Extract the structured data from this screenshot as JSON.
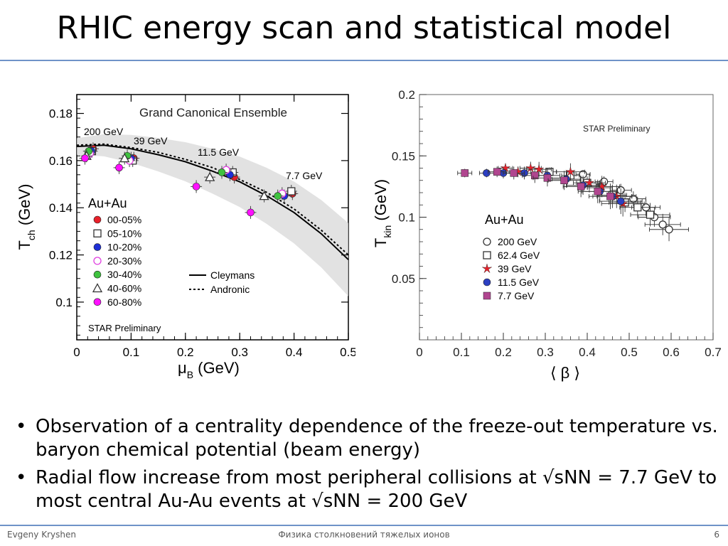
{
  "slide": {
    "title": "RHIC energy scan and statistical model",
    "bullets": [
      "Observation of a centrality dependence of the freeze-out temperature vs. baryon chemical potential (beam energy)",
      "Radial flow increase from most peripheral collisions at √sNN = 7.7 GeV to most central Au-Au events at √sNN = 200 GeV"
    ],
    "bullet_glyph": "•",
    "footer": {
      "author": "Evgeny Kryshen",
      "course": "Физика столкновений тяжелых ионов",
      "page": "6"
    }
  },
  "chart_data": [
    {
      "type": "scatter",
      "title": "Grand Canonical Ensemble",
      "xlabel": "μB (GeV)",
      "ylabel": "Tch (GeV)",
      "xlim": [
        0,
        0.5
      ],
      "ylim": [
        0.084,
        0.188
      ],
      "xticks": [
        0,
        0.1,
        0.2,
        0.3,
        0.4,
        0.5
      ],
      "xtick_labels": [
        "0",
        "0.1",
        "0.2",
        "0.3",
        "0.4",
        "0.5"
      ],
      "yticks": [
        0.1,
        0.12,
        0.14,
        0.16,
        0.18
      ],
      "ytick_labels": [
        "0.1",
        "0.12",
        "0.14",
        "0.16",
        "0.18"
      ],
      "annotations": [
        "200 GeV",
        "39 GeV",
        "11.5 GeV",
        "7.7 GeV",
        "Au+Au",
        "STAR Preliminary"
      ],
      "legend": [
        "00-05%",
        "05-10%",
        "10-20%",
        "20-30%",
        "30-40%",
        "40-60%",
        "60-80%"
      ],
      "curves": [
        {
          "name": "Cleymans",
          "style": "solid",
          "x": [
            0,
            0.05,
            0.1,
            0.15,
            0.2,
            0.25,
            0.3,
            0.35,
            0.4,
            0.45,
            0.5
          ],
          "y": [
            0.166,
            0.1665,
            0.165,
            0.1625,
            0.1595,
            0.1555,
            0.151,
            0.145,
            0.138,
            0.129,
            0.118
          ]
        },
        {
          "name": "Andronic",
          "style": "dotted",
          "x": [
            0,
            0.05,
            0.1,
            0.15,
            0.2,
            0.25,
            0.3,
            0.35,
            0.4,
            0.45,
            0.5
          ],
          "y": [
            0.1665,
            0.167,
            0.1655,
            0.1635,
            0.1605,
            0.157,
            0.152,
            0.1465,
            0.1395,
            0.1305,
            0.12
          ]
        }
      ],
      "series": [
        {
          "name": "00-05%",
          "color": "#e8202a",
          "marker": "circle",
          "x": [
            0.03,
            0.105,
            0.29,
            0.397
          ],
          "y": [
            0.165,
            0.161,
            0.153,
            0.146
          ]
        },
        {
          "name": "05-10%",
          "color": "#333333",
          "marker": "open-square",
          "x": [
            0.028,
            0.103,
            0.287,
            0.395
          ],
          "y": [
            0.164,
            0.16,
            0.155,
            0.147
          ]
        },
        {
          "name": "10-20%",
          "color": "#1f2fd6",
          "marker": "circle",
          "x": [
            0.027,
            0.1,
            0.282,
            0.382
          ],
          "y": [
            0.164,
            0.161,
            0.154,
            0.145
          ]
        },
        {
          "name": "20-30%",
          "color": "#e040e0",
          "marker": "open-circle",
          "x": [
            0.024,
            0.097,
            0.275,
            0.378
          ],
          "y": [
            0.163,
            0.16,
            0.156,
            0.146
          ]
        },
        {
          "name": "30-40%",
          "color": "#3fc23f",
          "marker": "circle",
          "x": [
            0.022,
            0.093,
            0.267,
            0.37
          ],
          "y": [
            0.164,
            0.162,
            0.155,
            0.145
          ]
        },
        {
          "name": "40-60%",
          "color": "#333333",
          "marker": "open-triangle",
          "x": [
            0.018,
            0.088,
            0.245,
            0.345
          ],
          "y": [
            0.162,
            0.161,
            0.153,
            0.145
          ]
        },
        {
          "name": "60-80%",
          "color": "#ff10ff",
          "marker": "circle",
          "x": [
            0.015,
            0.078,
            0.22,
            0.32
          ],
          "y": [
            0.161,
            0.157,
            0.149,
            0.138
          ]
        }
      ]
    },
    {
      "type": "scatter",
      "title": "STAR Preliminary",
      "xlabel": "⟨ β ⟩",
      "ylabel": "Tkin (GeV)",
      "xlim": [
        0,
        0.7
      ],
      "ylim": [
        0,
        0.2
      ],
      "xticks": [
        0,
        0.1,
        0.2,
        0.3,
        0.4,
        0.5,
        0.6,
        0.7
      ],
      "xtick_labels": [
        "0",
        "0.1",
        "0.2",
        "0.3",
        "0.4",
        "0.5",
        "0.6",
        "0.7"
      ],
      "yticks": [
        0.05,
        0.1,
        0.15,
        0.2
      ],
      "ytick_labels": [
        "0.05",
        "0.1",
        "0.15",
        "0.2"
      ],
      "annotations": [
        "Au+Au"
      ],
      "legend": [
        "200 GeV",
        "62.4 GeV",
        "39 GeV",
        "11.5 GeV",
        "7.7 GeV"
      ],
      "series": [
        {
          "name": "200 GeV",
          "color": "#333333",
          "marker": "open-circle",
          "x": [
            0.39,
            0.44,
            0.48,
            0.51,
            0.54,
            0.56,
            0.58,
            0.595
          ],
          "y": [
            0.135,
            0.129,
            0.122,
            0.115,
            0.108,
            0.1,
            0.094,
            0.09
          ]
        },
        {
          "name": "62.4 GeV",
          "color": "#333333",
          "marker": "open-square",
          "x": [
            0.31,
            0.36,
            0.4,
            0.43,
            0.46,
            0.49,
            0.52,
            0.55
          ],
          "y": [
            0.137,
            0.134,
            0.128,
            0.124,
            0.118,
            0.112,
            0.108,
            0.102
          ]
        },
        {
          "name": "39 GeV",
          "color": "#e8202a",
          "marker": "star",
          "x": [
            0.205,
            0.235,
            0.265,
            0.285,
            0.36,
            0.405,
            0.435,
            0.47,
            0.485
          ],
          "y": [
            0.14,
            0.137,
            0.14,
            0.139,
            0.137,
            0.128,
            0.125,
            0.117,
            0.111
          ]
        },
        {
          "name": "11.5 GeV",
          "color": "#2c3fc2",
          "marker": "circle",
          "x": [
            0.16,
            0.2,
            0.25,
            0.305,
            0.35,
            0.39,
            0.43,
            0.46,
            0.48
          ],
          "y": [
            0.136,
            0.136,
            0.136,
            0.134,
            0.131,
            0.126,
            0.121,
            0.117,
            0.113
          ]
        },
        {
          "name": "7.7 GeV",
          "color": "#b0468f",
          "marker": "square",
          "x": [
            0.108,
            0.185,
            0.225,
            0.275,
            0.305,
            0.345,
            0.385,
            0.425,
            0.455
          ],
          "y": [
            0.136,
            0.137,
            0.136,
            0.134,
            0.132,
            0.13,
            0.125,
            0.121,
            0.117
          ]
        }
      ]
    }
  ]
}
